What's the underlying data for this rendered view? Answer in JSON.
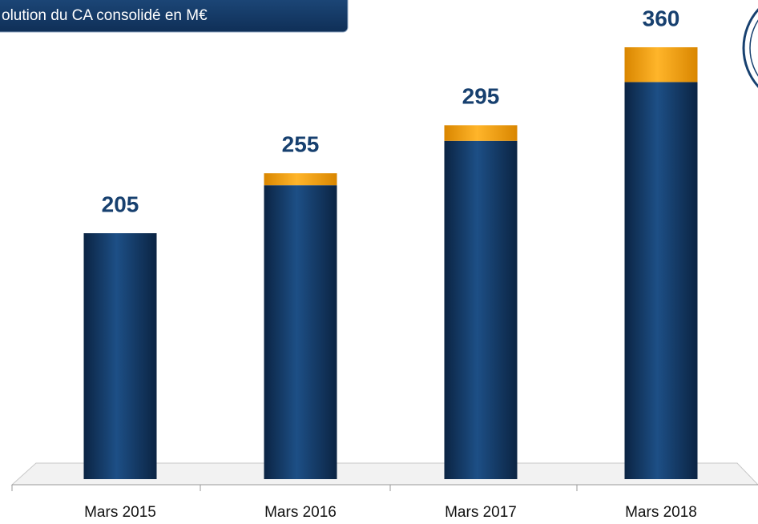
{
  "chart_data": {
    "type": "stacked_bar",
    "title": "olution du CA consolidé en M€",
    "categories": [
      "Mars 2015",
      "Mars 2016",
      "Mars 2017",
      "Mars 2018"
    ],
    "series": [
      {
        "color": "#143c6b",
        "values": [
          205,
          245,
          282,
          331
        ]
      },
      {
        "color": "#f5a000",
        "values": [
          0,
          10,
          13,
          29
        ]
      }
    ],
    "totals": [
      205,
      255,
      295,
      360
    ]
  }
}
